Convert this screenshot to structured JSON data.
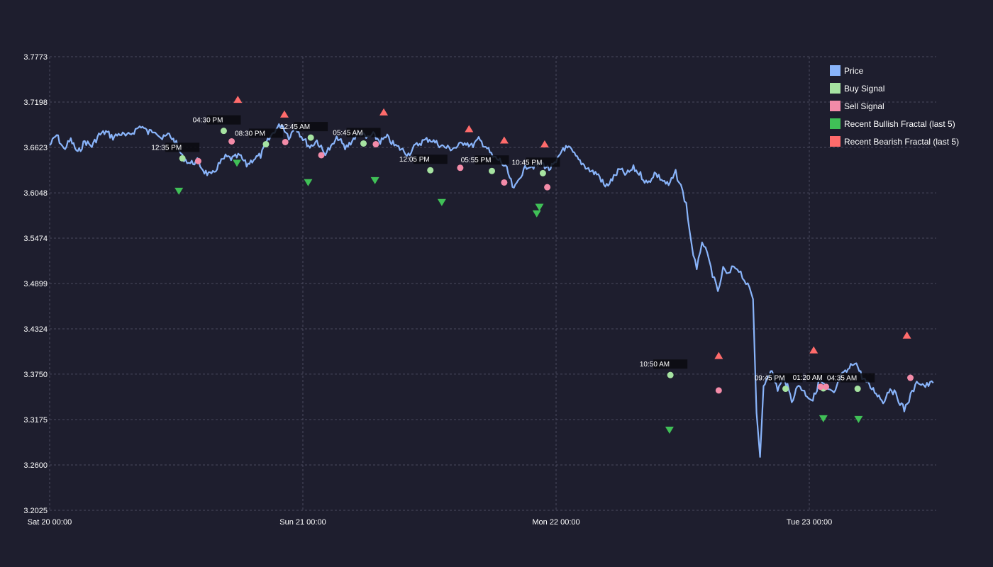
{
  "chart_data": {
    "type": "line",
    "title": "",
    "xlabel": "",
    "ylabel": "",
    "x_range": [
      "2024-01-20 00:00",
      "2024-01-23 11:45"
    ],
    "ylim": [
      3.2025,
      3.7773
    ],
    "x_ticks": [
      {
        "x": "2024-01-20 00:00",
        "label": "Sat 20 00:00"
      },
      {
        "x": "2024-01-21 00:00",
        "label": "Sun 21 00:00"
      },
      {
        "x": "2024-01-22 00:00",
        "label": "Mon 22 00:00"
      },
      {
        "x": "2024-01-23 00:00",
        "label": "Tue 23 00:00"
      }
    ],
    "y_ticks": [
      {
        "y": 3.2025,
        "label": "3.2025"
      },
      {
        "y": 3.26,
        "label": "3.2600"
      },
      {
        "y": 3.3175,
        "label": "3.3175"
      },
      {
        "y": 3.375,
        "label": "3.3750"
      },
      {
        "y": 3.4324,
        "label": "3.4324"
      },
      {
        "y": 3.4899,
        "label": "3.4899"
      },
      {
        "y": 3.5474,
        "label": "3.5474"
      },
      {
        "y": 3.6048,
        "label": "3.6048"
      },
      {
        "y": 3.6623,
        "label": "3.6623"
      },
      {
        "y": 3.7198,
        "label": "3.7198"
      },
      {
        "y": 3.7773,
        "label": "3.7773"
      }
    ],
    "grid": true,
    "legend_position": "top-right",
    "colors": {
      "background": "#1e1e2e",
      "text": "#ffffff",
      "grid": "#4a4a5e",
      "price": "#89b4fa",
      "buy": "#a6e3a1",
      "sell": "#f38ba8",
      "bullish": "#40c057",
      "bearish": "#ff6b6b",
      "callout_bg": "#0a0a0f"
    },
    "legend": [
      {
        "key": "price",
        "label": "Price"
      },
      {
        "key": "buy",
        "label": "Buy Signal"
      },
      {
        "key": "sell",
        "label": "Sell Signal"
      },
      {
        "key": "bullish",
        "label": "Recent Bullish Fractal (last 5)"
      },
      {
        "key": "bearish",
        "label": "Recent Bearish Fractal (last 5)"
      }
    ],
    "series": [
      {
        "name": "Price",
        "points": [
          [
            "2024-01-20 00:00",
            3.665
          ],
          [
            "2024-01-20 00:40",
            3.678
          ],
          [
            "2024-01-20 01:20",
            3.66
          ],
          [
            "2024-01-20 02:00",
            3.672
          ],
          [
            "2024-01-20 02:40",
            3.655
          ],
          [
            "2024-01-20 03:20",
            3.67
          ],
          [
            "2024-01-20 04:00",
            3.664
          ],
          [
            "2024-01-20 04:40",
            3.678
          ],
          [
            "2024-01-20 05:20",
            3.682
          ],
          [
            "2024-01-20 06:00",
            3.675
          ],
          [
            "2024-01-20 06:40",
            3.68
          ],
          [
            "2024-01-20 07:20",
            3.676
          ],
          [
            "2024-01-20 08:00",
            3.683
          ],
          [
            "2024-01-20 08:40",
            3.69
          ],
          [
            "2024-01-20 09:20",
            3.681
          ],
          [
            "2024-01-20 10:00",
            3.685
          ],
          [
            "2024-01-20 10:40",
            3.673
          ],
          [
            "2024-01-20 11:20",
            3.679
          ],
          [
            "2024-01-20 12:00",
            3.667
          ],
          [
            "2024-01-20 12:35",
            3.65
          ],
          [
            "2024-01-20 13:20",
            3.642
          ],
          [
            "2024-01-20 14:00",
            3.645
          ],
          [
            "2024-01-20 14:40",
            3.632
          ],
          [
            "2024-01-20 15:20",
            3.626
          ],
          [
            "2024-01-20 16:00",
            3.64
          ],
          [
            "2024-01-20 16:40",
            3.65
          ],
          [
            "2024-01-20 17:20",
            3.648
          ],
          [
            "2024-01-20 18:00",
            3.652
          ],
          [
            "2024-01-20 18:40",
            3.64
          ],
          [
            "2024-01-20 19:20",
            3.648
          ],
          [
            "2024-01-20 20:00",
            3.652
          ],
          [
            "2024-01-20 20:40",
            3.67
          ],
          [
            "2024-01-20 21:20",
            3.684
          ],
          [
            "2024-01-20 22:00",
            3.692
          ],
          [
            "2024-01-20 22:40",
            3.676
          ],
          [
            "2024-01-20 23:20",
            3.688
          ],
          [
            "2024-01-21 00:00",
            3.674
          ],
          [
            "2024-01-21 00:40",
            3.663
          ],
          [
            "2024-01-21 01:20",
            3.671
          ],
          [
            "2024-01-21 02:00",
            3.655
          ],
          [
            "2024-01-21 02:40",
            3.662
          ],
          [
            "2024-01-21 03:20",
            3.675
          ],
          [
            "2024-01-21 04:00",
            3.661
          ],
          [
            "2024-01-21 04:40",
            3.671
          ],
          [
            "2024-01-21 05:20",
            3.682
          ],
          [
            "2024-01-21 06:00",
            3.674
          ],
          [
            "2024-01-21 06:40",
            3.678
          ],
          [
            "2024-01-21 07:20",
            3.67
          ],
          [
            "2024-01-21 08:00",
            3.675
          ],
          [
            "2024-01-21 08:40",
            3.665
          ],
          [
            "2024-01-21 09:20",
            3.66
          ],
          [
            "2024-01-21 10:00",
            3.654
          ],
          [
            "2024-01-21 10:40",
            3.664
          ],
          [
            "2024-01-21 11:20",
            3.67
          ],
          [
            "2024-01-21 12:00",
            3.673
          ],
          [
            "2024-01-21 12:40",
            3.668
          ],
          [
            "2024-01-21 13:20",
            3.663
          ],
          [
            "2024-01-21 14:00",
            3.661
          ],
          [
            "2024-01-21 14:40",
            3.663
          ],
          [
            "2024-01-21 15:20",
            3.67
          ],
          [
            "2024-01-21 16:00",
            3.664
          ],
          [
            "2024-01-21 16:40",
            3.672
          ],
          [
            "2024-01-21 17:20",
            3.664
          ],
          [
            "2024-01-21 18:00",
            3.65
          ],
          [
            "2024-01-21 18:40",
            3.646
          ],
          [
            "2024-01-21 19:20",
            3.634
          ],
          [
            "2024-01-21 20:00",
            3.608
          ],
          [
            "2024-01-21 20:40",
            3.628
          ],
          [
            "2024-01-21 21:20",
            3.64
          ],
          [
            "2024-01-21 22:00",
            3.638
          ],
          [
            "2024-01-21 22:40",
            3.642
          ],
          [
            "2024-01-21 23:20",
            3.635
          ],
          [
            "2024-01-22 00:00",
            3.642
          ],
          [
            "2024-01-22 00:40",
            3.662
          ],
          [
            "2024-01-22 01:20",
            3.66
          ],
          [
            "2024-01-22 02:00",
            3.648
          ],
          [
            "2024-01-22 02:40",
            3.64
          ],
          [
            "2024-01-22 03:20",
            3.632
          ],
          [
            "2024-01-22 04:00",
            3.628
          ],
          [
            "2024-01-22 04:40",
            3.612
          ],
          [
            "2024-01-22 05:20",
            3.622
          ],
          [
            "2024-01-22 06:00",
            3.634
          ],
          [
            "2024-01-22 06:40",
            3.628
          ],
          [
            "2024-01-22 07:20",
            3.636
          ],
          [
            "2024-01-22 08:00",
            3.628
          ],
          [
            "2024-01-22 08:40",
            3.616
          ],
          [
            "2024-01-22 09:20",
            3.63
          ],
          [
            "2024-01-22 10:00",
            3.622
          ],
          [
            "2024-01-22 10:40",
            3.614
          ],
          [
            "2024-01-22 11:20",
            3.63
          ],
          [
            "2024-01-22 11:50",
            3.613
          ],
          [
            "2024-01-22 12:20",
            3.59
          ],
          [
            "2024-01-22 12:50",
            3.54
          ],
          [
            "2024-01-22 13:20",
            3.505
          ],
          [
            "2024-01-22 13:50",
            3.545
          ],
          [
            "2024-01-22 14:20",
            3.525
          ],
          [
            "2024-01-22 14:50",
            3.502
          ],
          [
            "2024-01-22 15:20",
            3.478
          ],
          [
            "2024-01-22 15:50",
            3.508
          ],
          [
            "2024-01-22 16:20",
            3.5
          ],
          [
            "2024-01-22 16:50",
            3.512
          ],
          [
            "2024-01-22 17:20",
            3.508
          ],
          [
            "2024-01-22 17:50",
            3.495
          ],
          [
            "2024-01-22 18:20",
            3.482
          ],
          [
            "2024-01-22 18:40",
            3.47
          ],
          [
            "2024-01-22 19:00",
            3.326
          ],
          [
            "2024-01-22 19:20",
            3.27
          ],
          [
            "2024-01-22 19:40",
            3.36
          ],
          [
            "2024-01-22 20:20",
            3.382
          ],
          [
            "2024-01-22 21:00",
            3.356
          ],
          [
            "2024-01-22 21:40",
            3.37
          ],
          [
            "2024-01-22 22:20",
            3.342
          ],
          [
            "2024-01-22 23:00",
            3.362
          ],
          [
            "2024-01-22 23:40",
            3.35
          ],
          [
            "2024-01-23 00:20",
            3.342
          ],
          [
            "2024-01-23 01:00",
            3.368
          ],
          [
            "2024-01-23 01:40",
            3.355
          ],
          [
            "2024-01-23 02:20",
            3.35
          ],
          [
            "2024-01-23 03:00",
            3.372
          ],
          [
            "2024-01-23 03:40",
            3.38
          ],
          [
            "2024-01-23 04:20",
            3.392
          ],
          [
            "2024-01-23 05:00",
            3.372
          ],
          [
            "2024-01-23 05:40",
            3.36
          ],
          [
            "2024-01-23 06:20",
            3.352
          ],
          [
            "2024-01-23 07:00",
            3.34
          ],
          [
            "2024-01-23 07:40",
            3.358
          ],
          [
            "2024-01-23 08:20",
            3.346
          ],
          [
            "2024-01-23 09:00",
            3.33
          ],
          [
            "2024-01-23 09:45",
            3.352
          ],
          [
            "2024-01-23 10:20",
            3.366
          ],
          [
            "2024-01-23 11:00",
            3.36
          ],
          [
            "2024-01-23 11:45",
            3.364
          ]
        ]
      }
    ],
    "buy_signals": [
      {
        "x": "2024-01-20 12:35",
        "y": 3.6485,
        "label": "12:35 PM"
      },
      {
        "x": "2024-01-20 16:30",
        "y": 3.6833,
        "label": "04:30 PM"
      },
      {
        "x": "2024-01-20 20:30",
        "y": 3.6664,
        "label": "08:30 PM"
      },
      {
        "x": "2024-01-21 00:45",
        "y": 3.6748,
        "label": "12:45 AM"
      },
      {
        "x": "2024-01-21 05:45",
        "y": 3.6673,
        "label": "05:45 AM"
      },
      {
        "x": "2024-01-21 12:05",
        "y": 3.6334,
        "label": "12:05 PM"
      },
      {
        "x": "2024-01-21 17:55",
        "y": 3.6325,
        "label": "05:55 PM"
      },
      {
        "x": "2024-01-21 22:45",
        "y": 3.6297,
        "label": "10:45 PM"
      },
      {
        "x": "2024-01-22 10:50",
        "y": 3.3739,
        "label": "10:50 AM"
      },
      {
        "x": "2024-01-22 21:45",
        "y": 3.3565,
        "label": "09:45 PM"
      },
      {
        "x": "2024-01-23 01:20",
        "y": 3.357,
        "label": "01:20 AM"
      },
      {
        "x": "2024-01-23 04:35",
        "y": 3.3565,
        "label": "04:35 AM"
      }
    ],
    "sell_signals": [
      {
        "x": "2024-01-20 14:05",
        "y": 3.645
      },
      {
        "x": "2024-01-20 17:15",
        "y": 3.67
      },
      {
        "x": "2024-01-20 22:20",
        "y": 3.6691
      },
      {
        "x": "2024-01-21 01:45",
        "y": 3.6525
      },
      {
        "x": "2024-01-21 06:55",
        "y": 3.6664
      },
      {
        "x": "2024-01-21 14:55",
        "y": 3.6365
      },
      {
        "x": "2024-01-21 19:05",
        "y": 3.6179
      },
      {
        "x": "2024-01-21 23:10",
        "y": 3.6119
      },
      {
        "x": "2024-01-22 15:25",
        "y": 3.3544
      },
      {
        "x": "2024-01-23 01:05",
        "y": 3.359
      },
      {
        "x": "2024-01-23 01:35",
        "y": 3.359
      },
      {
        "x": "2024-01-23 09:35",
        "y": 3.3704
      }
    ],
    "bullish_fractals": [
      {
        "x": "2024-01-20 12:15",
        "y": 3.6068
      },
      {
        "x": "2024-01-20 17:45",
        "y": 3.6423
      },
      {
        "x": "2024-01-21 00:30",
        "y": 3.6177
      },
      {
        "x": "2024-01-21 06:50",
        "y": 3.6202
      },
      {
        "x": "2024-01-21 13:10",
        "y": 3.5925
      },
      {
        "x": "2024-01-21 22:10",
        "y": 3.5781
      },
      {
        "x": "2024-01-21 22:25",
        "y": 3.5864
      },
      {
        "x": "2024-01-22 10:45",
        "y": 3.304
      },
      {
        "x": "2024-01-23 01:20",
        "y": 3.3185
      },
      {
        "x": "2024-01-23 04:40",
        "y": 3.3176
      }
    ],
    "bearish_fractals": [
      {
        "x": "2024-01-20 17:50",
        "y": 3.7233
      },
      {
        "x": "2024-01-20 22:15",
        "y": 3.7047
      },
      {
        "x": "2024-01-21 07:40",
        "y": 3.7074
      },
      {
        "x": "2024-01-21 15:45",
        "y": 3.6861
      },
      {
        "x": "2024-01-21 19:05",
        "y": 3.6718
      },
      {
        "x": "2024-01-21 22:55",
        "y": 3.6668
      },
      {
        "x": "2024-01-22 15:25",
        "y": 3.3987
      },
      {
        "x": "2024-01-23 00:25",
        "y": 3.4058
      },
      {
        "x": "2024-01-23 09:15",
        "y": 3.4246
      }
    ]
  }
}
